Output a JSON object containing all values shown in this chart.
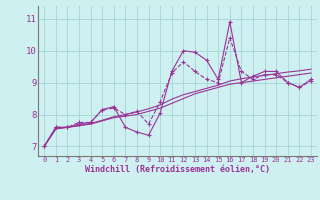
{
  "background_color": "#cff0f0",
  "grid_color": "#aad8d8",
  "line_color": "#993399",
  "xlabel": "Windchill (Refroidissement éolien,°C)",
  "ylabel_ticks": [
    7,
    8,
    9,
    10,
    11
  ],
  "xlim": [
    -0.5,
    23.5
  ],
  "ylim": [
    6.7,
    11.4
  ],
  "xticks": [
    0,
    1,
    2,
    3,
    4,
    5,
    6,
    7,
    8,
    9,
    10,
    11,
    12,
    13,
    14,
    15,
    16,
    17,
    18,
    19,
    20,
    21,
    22,
    23
  ],
  "series": [
    {
      "x": [
        0,
        1,
        2,
        3,
        4,
        5,
        6,
        7,
        8,
        9,
        10,
        11,
        12,
        13,
        14,
        15,
        16,
        17,
        18,
        19,
        20,
        21,
        22,
        23
      ],
      "y": [
        7.0,
        7.6,
        7.6,
        7.7,
        7.75,
        8.15,
        8.25,
        7.6,
        7.45,
        7.35,
        8.05,
        9.35,
        10.0,
        9.95,
        9.7,
        9.1,
        10.9,
        9.0,
        9.2,
        9.35,
        9.35,
        9.0,
        8.85,
        9.1
      ],
      "style": "-",
      "marker": "+"
    },
    {
      "x": [
        0,
        1,
        2,
        3,
        4,
        5,
        6,
        7,
        8,
        9,
        10,
        11,
        12,
        13,
        14,
        15,
        16,
        17,
        18,
        19,
        20,
        21,
        22,
        23
      ],
      "y": [
        7.0,
        7.6,
        7.6,
        7.75,
        7.75,
        8.15,
        8.2,
        8.0,
        8.1,
        7.7,
        8.4,
        9.3,
        9.65,
        9.35,
        9.1,
        9.0,
        10.4,
        9.35,
        9.1,
        9.25,
        9.25,
        9.0,
        8.85,
        9.05
      ],
      "style": "--",
      "marker": "+"
    },
    {
      "x": [
        0,
        1,
        2,
        3,
        4,
        5,
        6,
        7,
        8,
        9,
        10,
        11,
        12,
        13,
        14,
        15,
        16,
        17,
        18,
        19,
        20,
        21,
        22,
        23
      ],
      "y": [
        7.0,
        7.55,
        7.6,
        7.65,
        7.7,
        7.8,
        7.9,
        7.95,
        8.0,
        8.1,
        8.2,
        8.35,
        8.5,
        8.65,
        8.75,
        8.85,
        8.95,
        9.0,
        9.05,
        9.1,
        9.15,
        9.2,
        9.25,
        9.3
      ],
      "style": "-",
      "marker": null
    },
    {
      "x": [
        0,
        1,
        2,
        3,
        4,
        5,
        6,
        7,
        8,
        9,
        10,
        11,
        12,
        13,
        14,
        15,
        16,
        17,
        18,
        19,
        20,
        21,
        22,
        23
      ],
      "y": [
        7.0,
        7.55,
        7.6,
        7.65,
        7.72,
        7.82,
        7.93,
        8.0,
        8.08,
        8.18,
        8.3,
        8.48,
        8.62,
        8.72,
        8.82,
        8.92,
        9.05,
        9.12,
        9.18,
        9.23,
        9.28,
        9.33,
        9.37,
        9.42
      ],
      "style": "-",
      "marker": null
    }
  ]
}
